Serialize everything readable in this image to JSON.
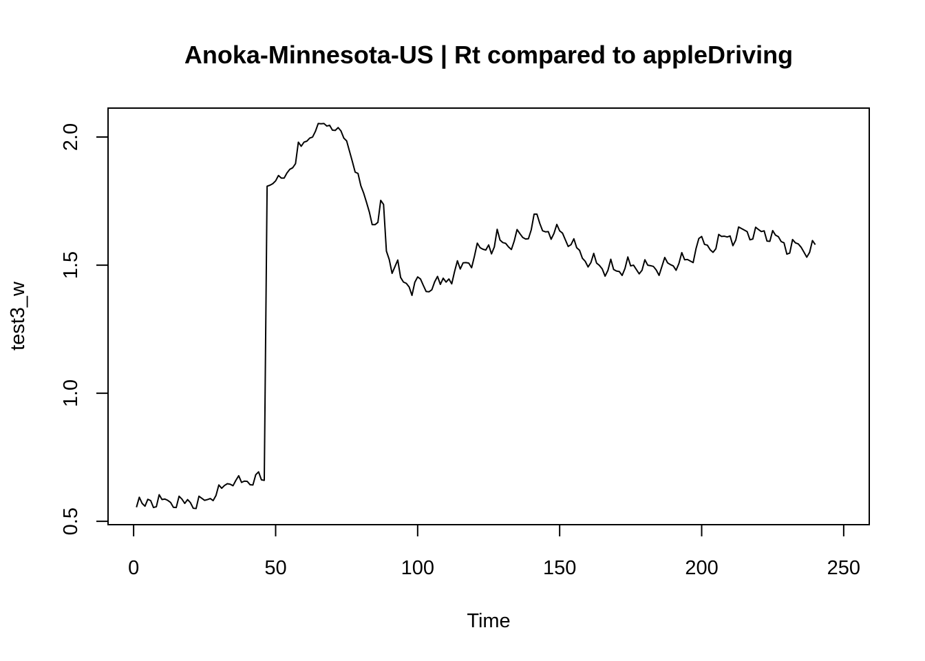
{
  "chart_data": {
    "type": "line",
    "title": "Anoka-Minnesota-US | Rt compared to appleDriving",
    "xlabel": "Time",
    "ylabel": "test3_w",
    "xlim": [
      -9,
      259
    ],
    "ylim": [
      0.487,
      2.113
    ],
    "x_ticks": [
      0,
      50,
      100,
      150,
      200,
      250
    ],
    "y_ticks": [
      0.5,
      1.0,
      1.5,
      2.0
    ],
    "x_tick_labels": [
      "0",
      "50",
      "100",
      "150",
      "200",
      "250"
    ],
    "y_tick_labels": [
      "0.5",
      "1.0",
      "1.5",
      "2.0"
    ],
    "grid": false,
    "legend": "none",
    "series": [
      {
        "color": "#000000",
        "x_start": 1,
        "values": [
          0.555,
          0.594,
          0.57,
          0.559,
          0.586,
          0.581,
          0.554,
          0.557,
          0.604,
          0.585,
          0.587,
          0.582,
          0.574,
          0.555,
          0.554,
          0.598,
          0.587,
          0.57,
          0.585,
          0.573,
          0.551,
          0.55,
          0.598,
          0.59,
          0.582,
          0.585,
          0.589,
          0.581,
          0.601,
          0.642,
          0.629,
          0.64,
          0.647,
          0.645,
          0.639,
          0.66,
          0.678,
          0.652,
          0.657,
          0.656,
          0.643,
          0.642,
          0.682,
          0.693,
          0.662,
          0.66,
          1.808,
          1.812,
          1.818,
          1.829,
          1.85,
          1.84,
          1.84,
          1.86,
          1.874,
          1.88,
          1.896,
          1.98,
          1.964,
          1.98,
          1.984,
          1.996,
          2.0,
          2.022,
          2.053,
          2.052,
          2.053,
          2.043,
          2.046,
          2.027,
          2.026,
          2.037,
          2.024,
          1.996,
          1.985,
          1.945,
          1.905,
          1.863,
          1.858,
          1.81,
          1.781,
          1.745,
          1.707,
          1.658,
          1.658,
          1.667,
          1.753,
          1.737,
          1.555,
          1.522,
          1.468,
          1.494,
          1.52,
          1.452,
          1.434,
          1.429,
          1.415,
          1.382,
          1.433,
          1.454,
          1.446,
          1.421,
          1.397,
          1.396,
          1.404,
          1.435,
          1.456,
          1.425,
          1.449,
          1.434,
          1.446,
          1.427,
          1.475,
          1.517,
          1.485,
          1.509,
          1.51,
          1.508,
          1.49,
          1.535,
          1.586,
          1.568,
          1.562,
          1.559,
          1.579,
          1.544,
          1.571,
          1.64,
          1.598,
          1.588,
          1.585,
          1.571,
          1.561,
          1.594,
          1.639,
          1.623,
          1.608,
          1.602,
          1.603,
          1.638,
          1.699,
          1.699,
          1.663,
          1.634,
          1.63,
          1.631,
          1.601,
          1.624,
          1.659,
          1.634,
          1.625,
          1.599,
          1.573,
          1.58,
          1.603,
          1.568,
          1.558,
          1.527,
          1.515,
          1.493,
          1.51,
          1.546,
          1.508,
          1.499,
          1.485,
          1.457,
          1.48,
          1.523,
          1.483,
          1.477,
          1.475,
          1.46,
          1.487,
          1.532,
          1.497,
          1.5,
          1.483,
          1.466,
          1.48,
          1.521,
          1.5,
          1.498,
          1.495,
          1.481,
          1.46,
          1.495,
          1.53,
          1.509,
          1.502,
          1.497,
          1.48,
          1.507,
          1.549,
          1.521,
          1.522,
          1.516,
          1.51,
          1.564,
          1.604,
          1.612,
          1.581,
          1.578,
          1.56,
          1.55,
          1.564,
          1.62,
          1.612,
          1.613,
          1.61,
          1.614,
          1.576,
          1.598,
          1.649,
          1.643,
          1.637,
          1.631,
          1.599,
          1.602,
          1.648,
          1.639,
          1.631,
          1.634,
          1.594,
          1.593,
          1.635,
          1.617,
          1.611,
          1.592,
          1.587,
          1.543,
          1.547,
          1.6,
          1.587,
          1.583,
          1.57,
          1.551,
          1.531,
          1.55,
          1.596,
          1.58
        ]
      }
    ]
  }
}
